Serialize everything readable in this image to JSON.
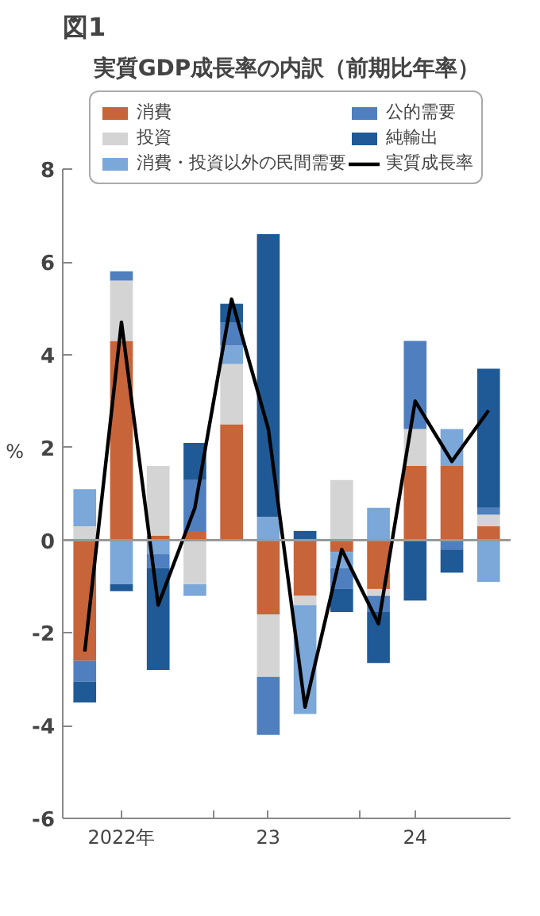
{
  "chart_data": {
    "type": "bar",
    "title": "実質GDP成長率の内訳（前期比年率）",
    "ylabel": "%",
    "stacked": true,
    "legend": "top",
    "categories": [
      null,
      "2022年",
      null,
      null,
      null,
      "23",
      null,
      null,
      null,
      "24",
      null,
      null
    ],
    "ylim": [
      -6,
      8
    ],
    "yticks": [
      -6,
      -4,
      -2,
      0,
      2,
      4,
      6,
      8
    ],
    "series": [
      {
        "name": "消費",
        "color": "#c8643a",
        "values": [
          -2.6,
          4.3,
          0.1,
          0.2,
          2.5,
          -1.6,
          -1.2,
          -0.25,
          -1.05,
          1.6,
          1.6,
          0.3
        ]
      },
      {
        "name": "投資",
        "color": "#d4d4d4",
        "values": [
          0.3,
          1.3,
          1.5,
          -0.95,
          1.3,
          -1.35,
          -0.2,
          1.3,
          -0.15,
          0.8,
          null,
          0.25
        ]
      },
      {
        "name": "消費・投資以外の民間需要",
        "color": "#7ba7d9",
        "values": [
          0.8,
          -0.95,
          -0.3,
          -0.25,
          0.4,
          0.5,
          -2.35,
          -0.35,
          0.7,
          null,
          0.8,
          -0.9
        ]
      },
      {
        "name": "公的需要",
        "color": "#4f7fbf",
        "values": [
          -0.45,
          0.2,
          -0.3,
          1.1,
          0.5,
          -1.25,
          null,
          -0.45,
          -0.35,
          1.9,
          -0.2,
          0.15
        ]
      },
      {
        "name": "純輸出",
        "color": "#1f5a96",
        "values": [
          -0.45,
          -0.15,
          -2.2,
          0.8,
          0.4,
          6.1,
          0.2,
          -0.5,
          -1.1,
          -1.3,
          -0.5,
          3.0
        ]
      },
      {
        "name": "実質成長率",
        "type": "line",
        "color": "#000000",
        "values": [
          -2.4,
          4.7,
          -1.4,
          0.7,
          5.2,
          2.4,
          -3.6,
          -0.2,
          -1.8,
          3.0,
          1.7,
          2.8
        ]
      }
    ],
    "ref_lines": [
      {
        "axis": "y",
        "value": 0,
        "color": "#999999"
      }
    ],
    "annotations": [
      "図1"
    ]
  }
}
